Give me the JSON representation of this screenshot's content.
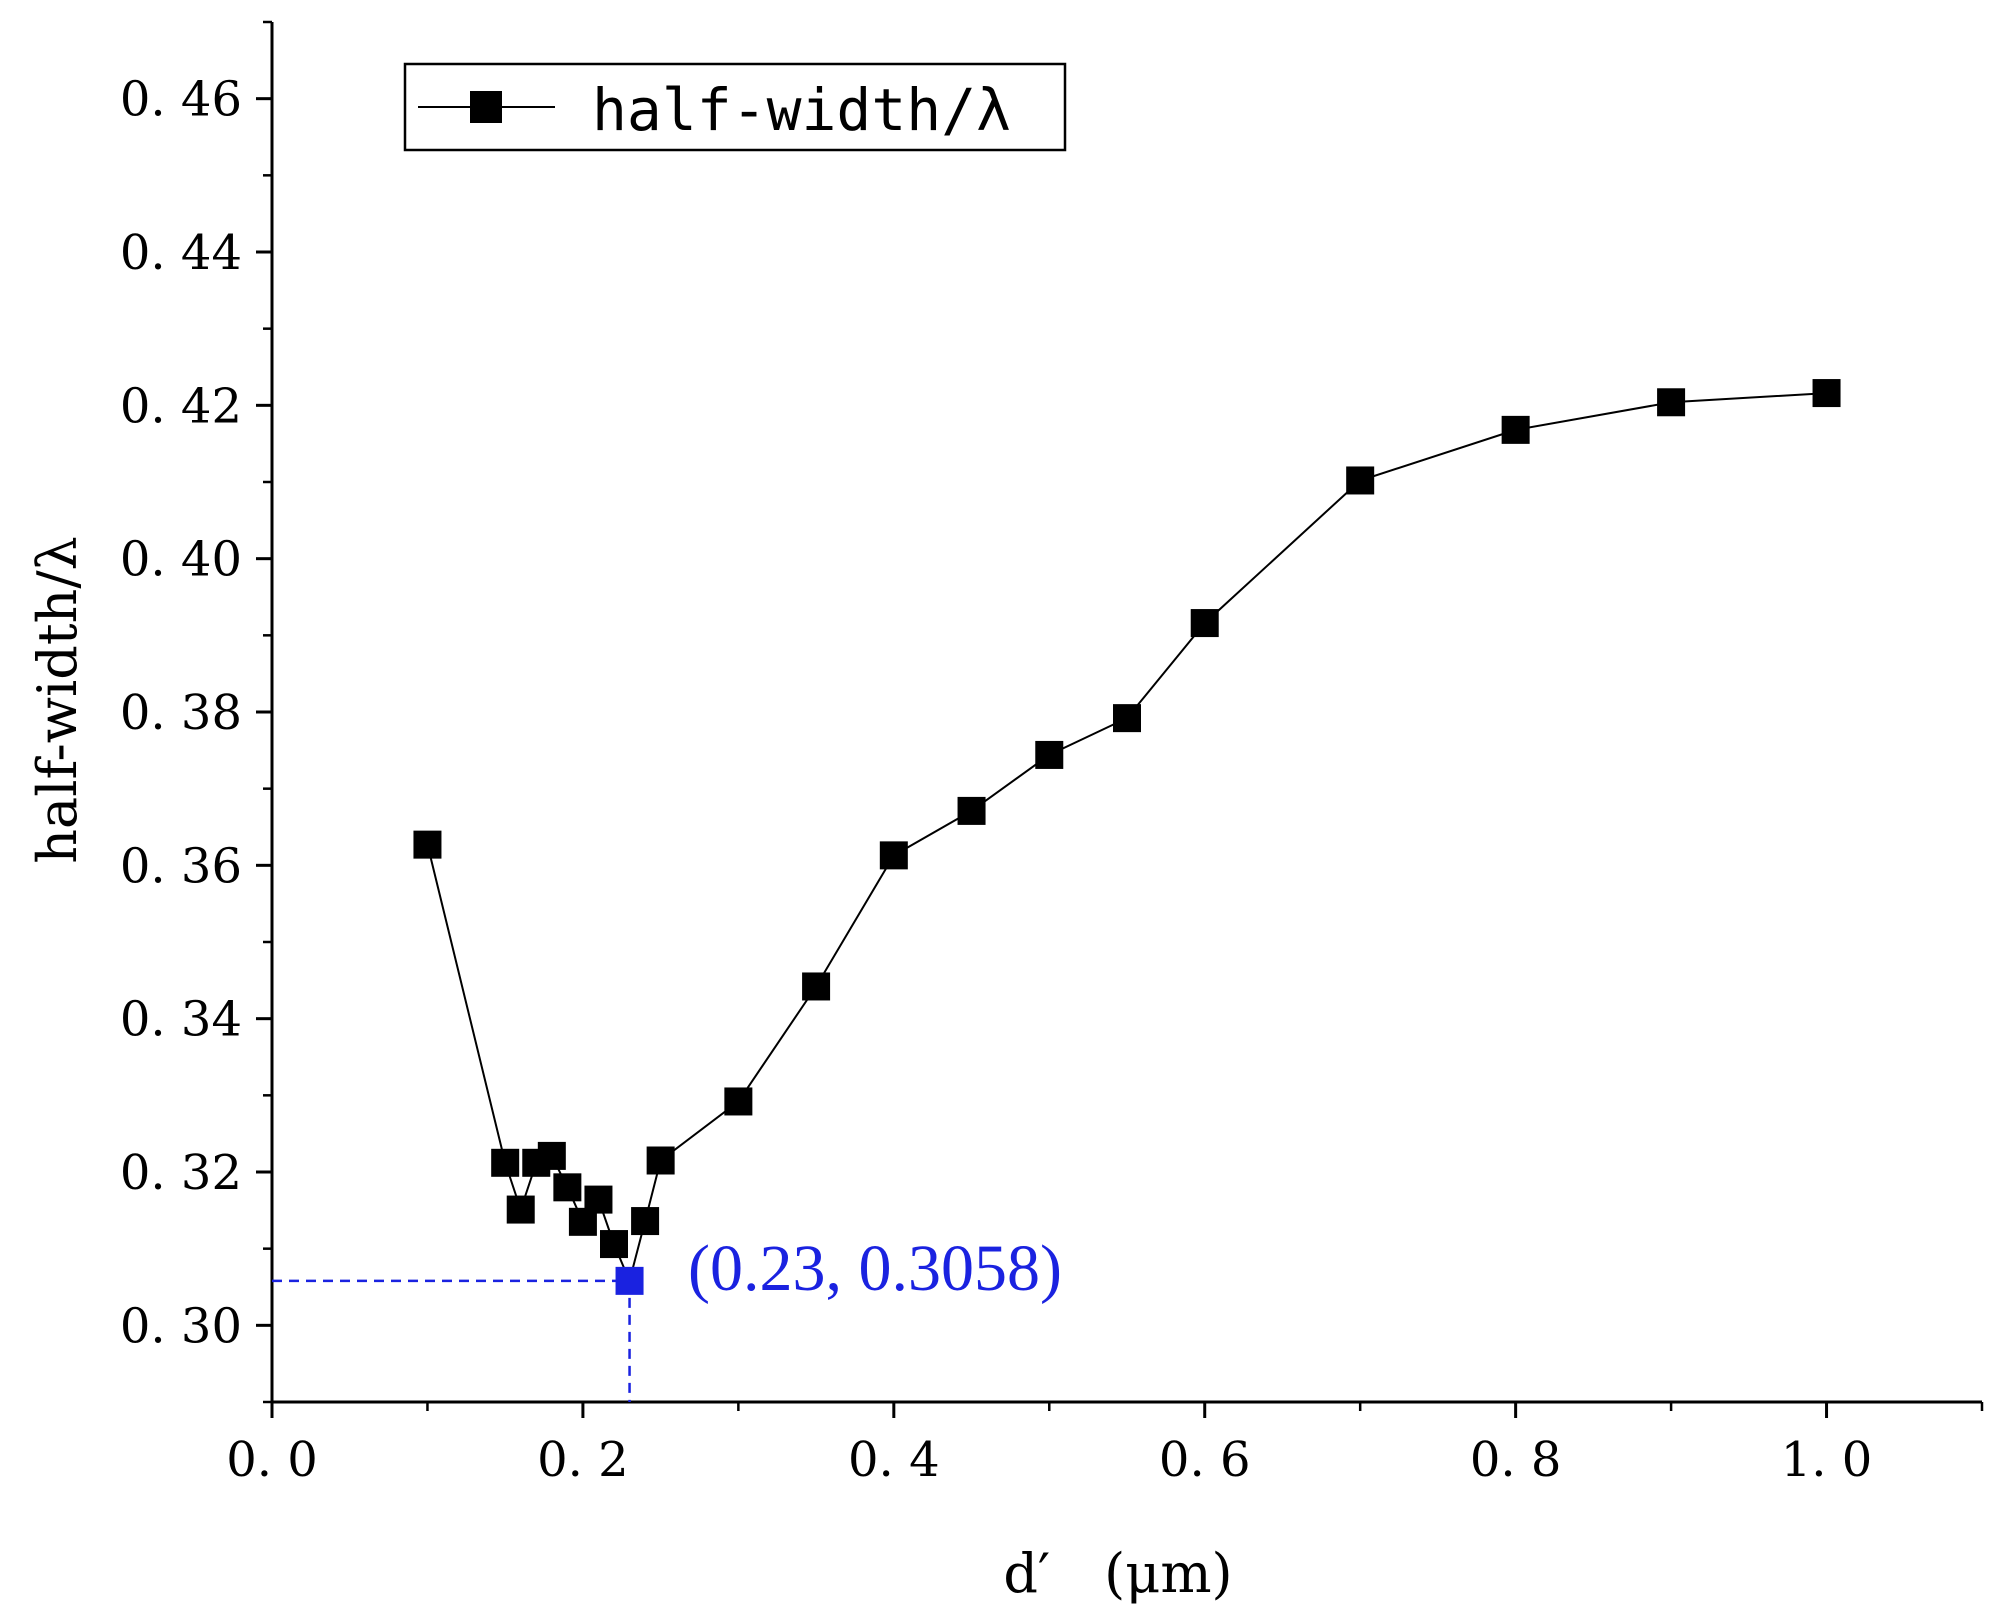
{
  "chart_data": {
    "type": "line",
    "xlabel": "d′　(μm)",
    "ylabel": "half-width/λ",
    "xlim": [
      0,
      1.1
    ],
    "ylim": [
      0.29,
      0.47
    ],
    "x_ticks": [
      "0.0",
      "0.2",
      "0.4",
      "0.6",
      "0.8",
      "1.0"
    ],
    "y_ticks": [
      "0.30",
      "0.32",
      "0.34",
      "0.36",
      "0.38",
      "0.40",
      "0.42",
      "0.44",
      "0.46"
    ],
    "legend": {
      "position": "top-left",
      "entries": [
        "half-width/λ"
      ]
    },
    "series": [
      {
        "name": "half-width/λ",
        "marker": "square",
        "color": "#000000",
        "points": [
          [
            0.1,
            0.3627
          ],
          [
            0.15,
            0.3212
          ],
          [
            0.16,
            0.3151
          ],
          [
            0.17,
            0.3212
          ],
          [
            0.18,
            0.3221
          ],
          [
            0.19,
            0.318
          ],
          [
            0.2,
            0.3135
          ],
          [
            0.21,
            0.3164
          ],
          [
            0.22,
            0.3106
          ],
          [
            0.23,
            0.3058
          ],
          [
            0.24,
            0.3136
          ],
          [
            0.25,
            0.3215
          ],
          [
            0.3,
            0.3292
          ],
          [
            0.35,
            0.3442
          ],
          [
            0.4,
            0.3613
          ],
          [
            0.45,
            0.3671
          ],
          [
            0.5,
            0.3744
          ],
          [
            0.55,
            0.3792
          ],
          [
            0.6,
            0.3916
          ],
          [
            0.7,
            0.4102
          ],
          [
            0.8,
            0.4168
          ],
          [
            0.9,
            0.4204
          ],
          [
            1.0,
            0.4216
          ]
        ]
      }
    ],
    "highlight": {
      "x": 0.23,
      "y": 0.3058,
      "label": "(0.23, 0.3058)",
      "color": "#1a22e0"
    }
  }
}
